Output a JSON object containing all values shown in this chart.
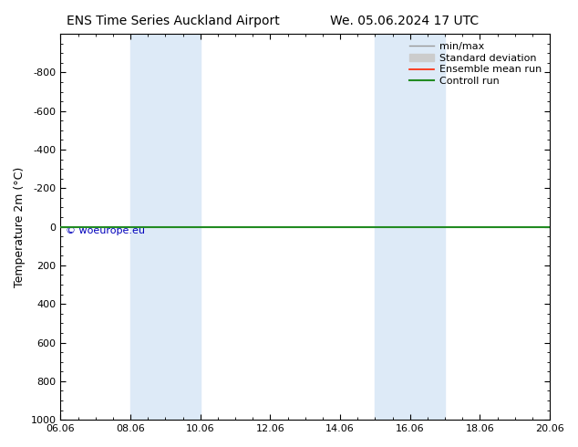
{
  "title_left": "ENS Time Series Auckland Airport",
  "title_right": "We. 05.06.2024 17 UTC",
  "ylabel": "Temperature 2m (°C)",
  "ylim_top": -1000,
  "ylim_bottom": 1000,
  "yticks": [
    -800,
    -600,
    -400,
    -200,
    0,
    200,
    400,
    600,
    800,
    1000
  ],
  "xlim_start": 0.0,
  "xlim_end": 14.0,
  "xtick_labels": [
    "06.06",
    "08.06",
    "10.06",
    "12.06",
    "14.06",
    "16.06",
    "18.06",
    "20.06"
  ],
  "xtick_positions": [
    0,
    2,
    4,
    6,
    8,
    10,
    12,
    14
  ],
  "shaded_bands": [
    {
      "x_start": 2.0,
      "x_end": 4.0
    },
    {
      "x_start": 9.0,
      "x_end": 11.0
    }
  ],
  "band_color": "#ddeaf7",
  "ensemble_mean_color": "#ff2200",
  "ensemble_mean_y": 0,
  "control_run_color": "#228B22",
  "control_run_y": 0,
  "watermark_text": "© woeurope.eu",
  "watermark_color": "#0000bb",
  "bg_color": "#ffffff",
  "plot_bg_color": "#ffffff",
  "legend_items": [
    {
      "label": "min/max",
      "color": "#999999",
      "lw": 1.0,
      "type": "line"
    },
    {
      "label": "Standard deviation",
      "color": "#cccccc",
      "lw": 5,
      "type": "patch"
    },
    {
      "label": "Ensemble mean run",
      "color": "#ff2200",
      "lw": 1.2,
      "type": "line"
    },
    {
      "label": "Controll run",
      "color": "#228B22",
      "lw": 1.5,
      "type": "line"
    }
  ],
  "title_fontsize": 10,
  "ylabel_fontsize": 9,
  "tick_fontsize": 8,
  "legend_fontsize": 8
}
